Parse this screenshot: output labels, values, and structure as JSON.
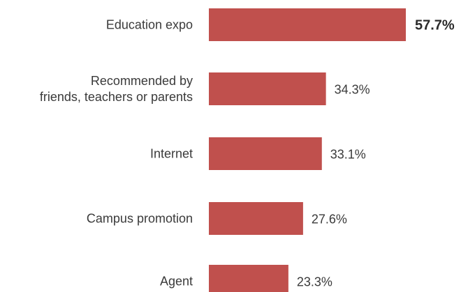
{
  "chart_data": {
    "type": "bar",
    "orientation": "horizontal",
    "categories": [
      [
        "Education expo"
      ],
      [
        "Recommended by",
        "friends, teachers or parents"
      ],
      [
        "Internet"
      ],
      [
        "Campus promotion"
      ],
      [
        "Agent"
      ]
    ],
    "values": [
      57.7,
      34.3,
      33.1,
      27.6,
      23.3
    ],
    "value_labels": [
      "57.7%",
      "34.3%",
      "33.1%",
      "27.6%",
      "23.3%"
    ],
    "emphasized": [
      true,
      false,
      false,
      false,
      false
    ],
    "bar_color": "#c0504d",
    "xlim": [
      0,
      57.7
    ],
    "grid": false,
    "title": "",
    "xlabel": "",
    "ylabel": ""
  }
}
